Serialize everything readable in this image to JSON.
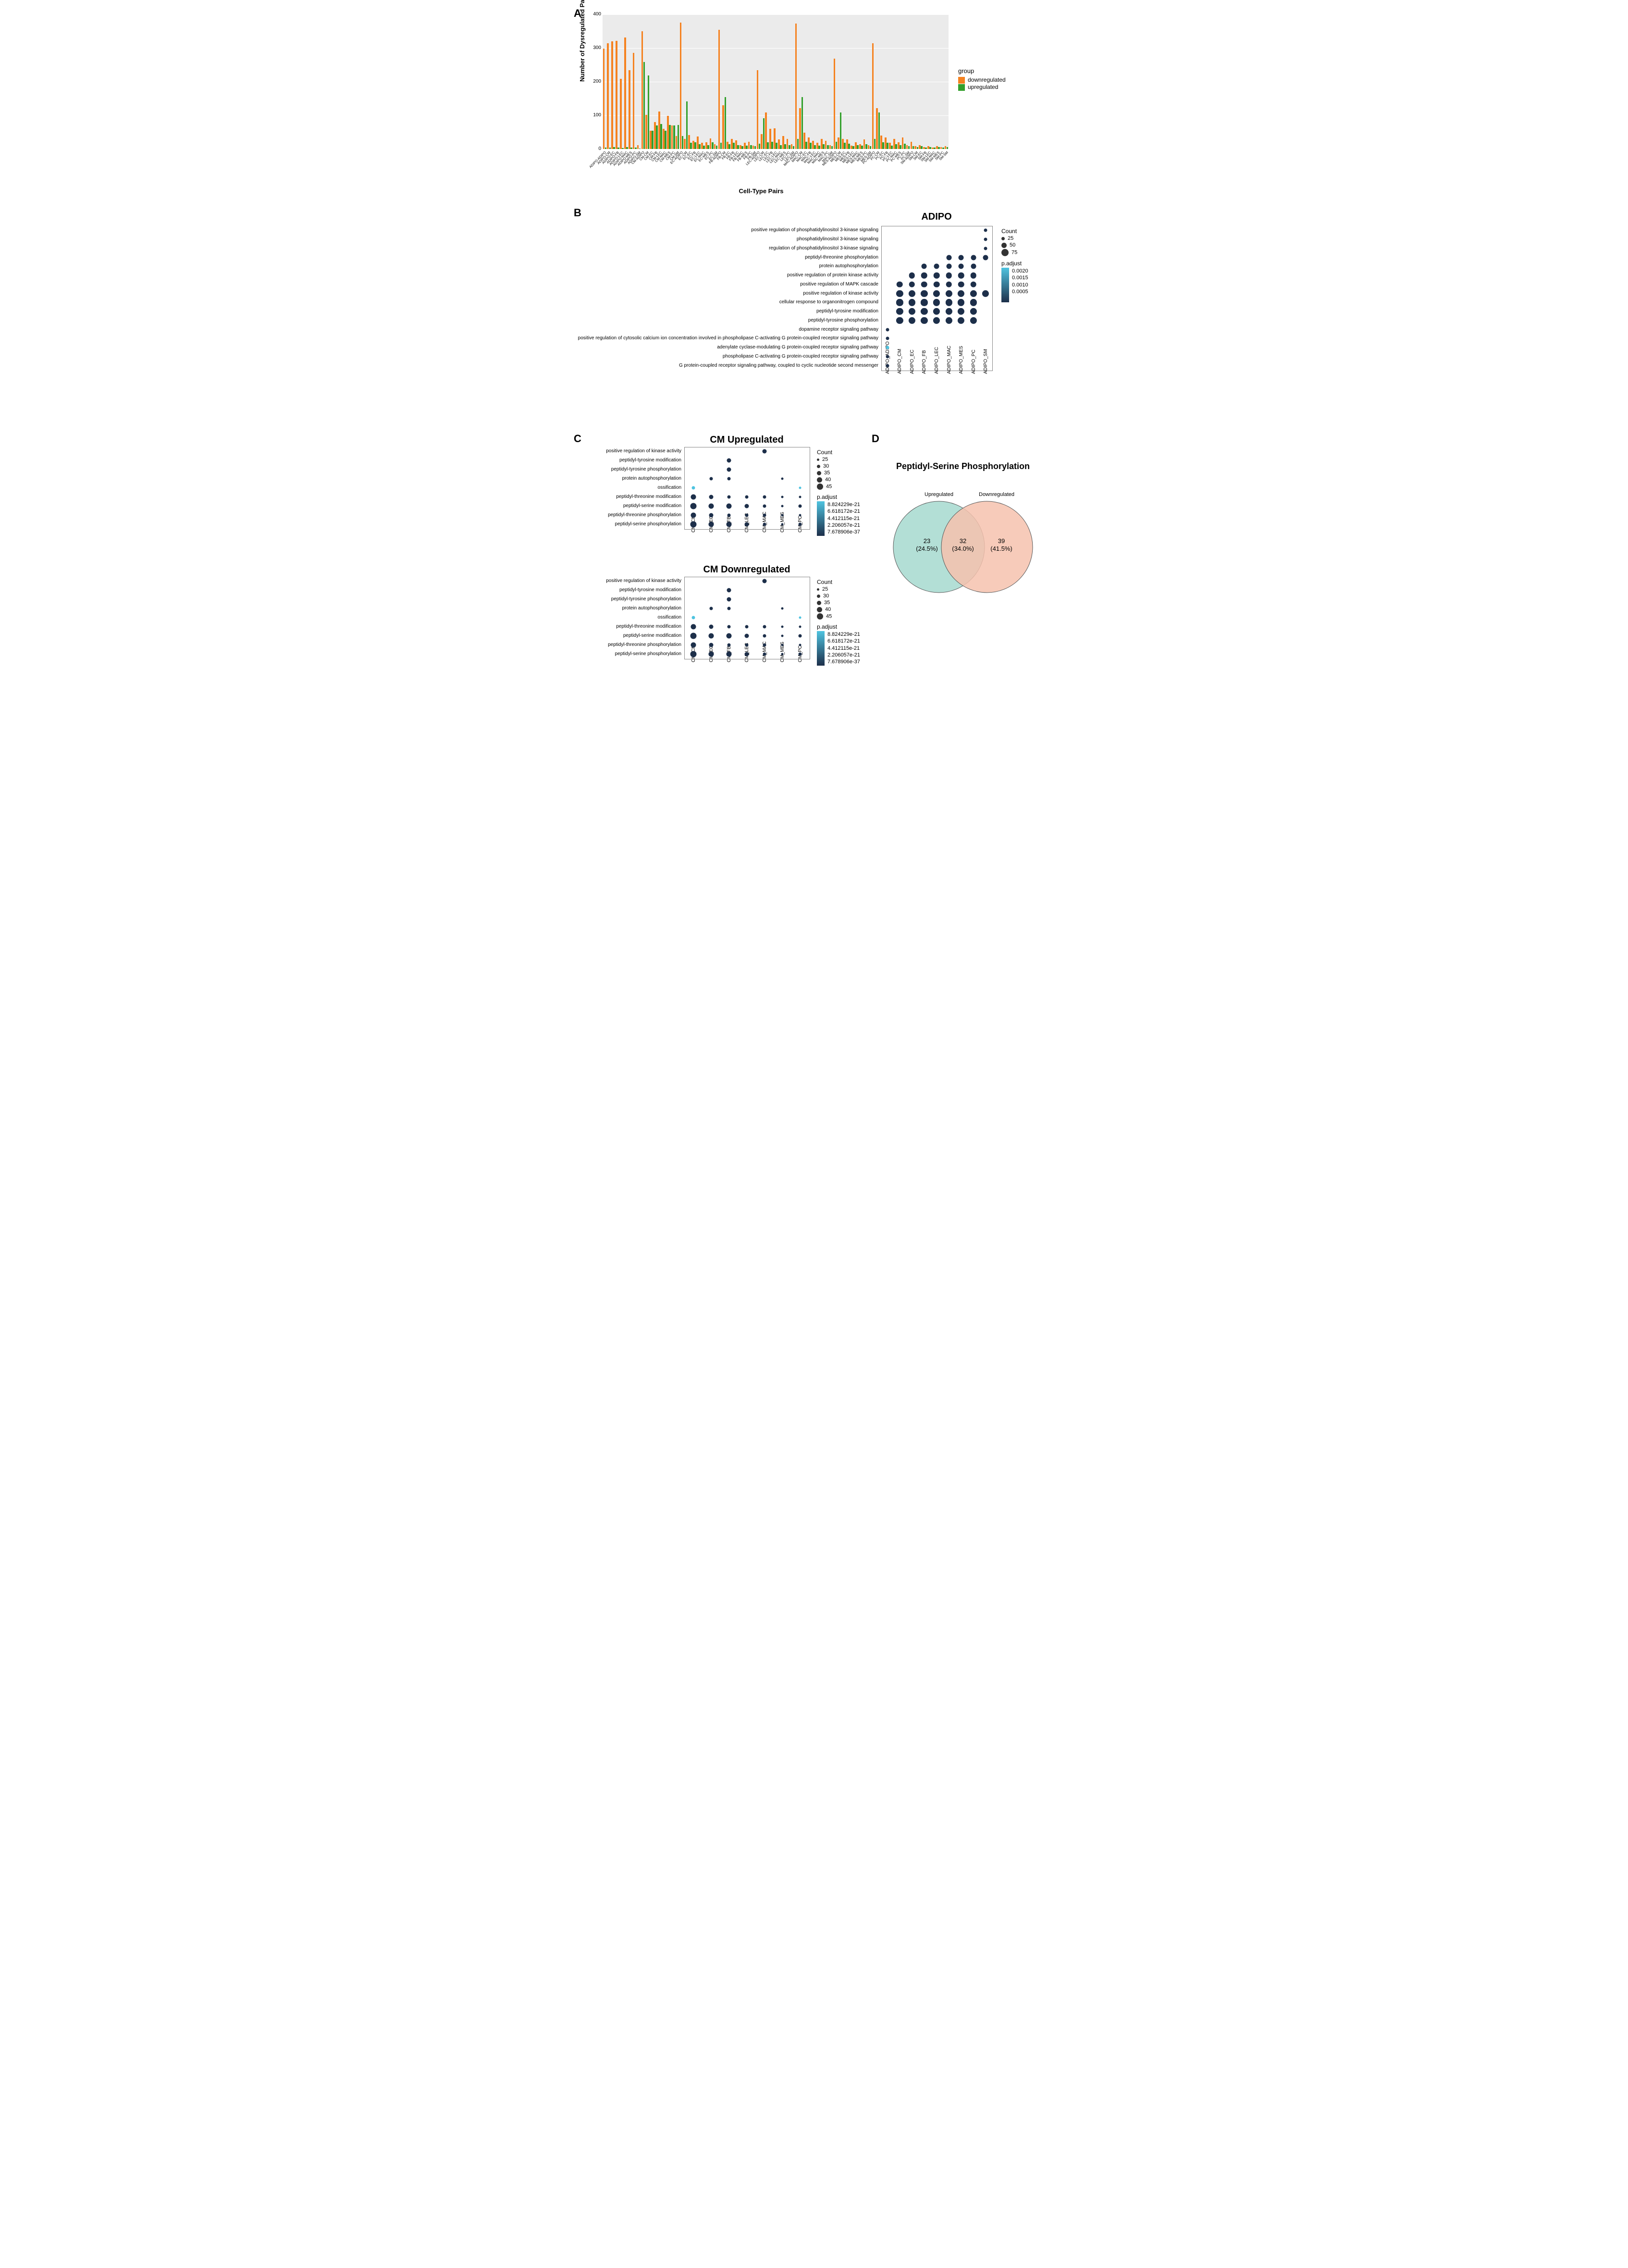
{
  "panelA": {
    "type": "grouped-bar",
    "ylabel": "Number of Dysregulated Pairs",
    "xlabel": "Cell-Type Pairs",
    "ylim": [
      0,
      400
    ],
    "ytick_step": 100,
    "background_color": "#ebebeb",
    "grid_color": "#ffffff",
    "colors": {
      "downregulated": "#f58220",
      "upregulated": "#33a02c"
    },
    "legend_title": "group",
    "legend_labels": [
      "downregulated",
      "upregulated"
    ],
    "categories": [
      "ADIPO-ADIPO",
      "ADIPO-CM",
      "ADIPO-EC",
      "ADIPO-FB",
      "ADIPO-LEC",
      "ADIPO-MAC",
      "ADIPO-MES",
      "ADIPO-PC",
      "ADIPO-SM",
      "CM-ADIPO",
      "CM-CM",
      "CM-EC",
      "CM-FB",
      "CM-LEC",
      "CM-MAC",
      "CM-MES",
      "CM-PC",
      "CM-SM",
      "EC-ADIPO",
      "EC-CM",
      "EC-EC",
      "EC-FB",
      "EC-LEC",
      "EC-MAC",
      "EC-MES",
      "EC-PC",
      "EC-SM",
      "FB-ADIPO",
      "FB-CM",
      "FB-EC",
      "FB-FB",
      "FB-LEC",
      "FB-MAC",
      "FB-MES",
      "FB-PC",
      "FB-SM",
      "LEC-ADIPO",
      "LEC-CM",
      "LEC-EC",
      "LEC-FB",
      "LEC-LEC",
      "LEC-MAC",
      "LEC-MES",
      "LEC-PC",
      "LEC-SM",
      "MAC-ADIPO",
      "MAC-CM",
      "MAC-EC",
      "MAC-FB",
      "MAC-LEC",
      "MAC-MAC",
      "MAC-MES",
      "MAC-PC",
      "MAC-SM",
      "MES-ADIPO",
      "MES-CM",
      "MES-EC",
      "MES-FB",
      "MES-LEC",
      "MES-MAC",
      "MES-MES",
      "MES-PC",
      "MES-SM",
      "PC-ADIPO",
      "PC-CM",
      "PC-EC",
      "PC-FB",
      "PC-LEC",
      "PC-MAC",
      "PC-MES",
      "PC-PC",
      "PC-SM",
      "SM-ADIPO",
      "SM-CM",
      "SM-EC",
      "SM-FB",
      "SM-LEC",
      "SM-MAC",
      "SM-MES",
      "SM-PC",
      "SM-SM"
    ],
    "downregulated": [
      298,
      315,
      320,
      322,
      208,
      332,
      235,
      286,
      12,
      350,
      102,
      55,
      80,
      111,
      60,
      98,
      70,
      38,
      376,
      30,
      42,
      25,
      37,
      18,
      20,
      32,
      15,
      355,
      130,
      22,
      30,
      26,
      12,
      18,
      22,
      10,
      235,
      45,
      108,
      60,
      62,
      28,
      38,
      30,
      14,
      373,
      122,
      48,
      35,
      24,
      18,
      30,
      24,
      12,
      268,
      35,
      30,
      28,
      10,
      20,
      14,
      28,
      12,
      314,
      122,
      40,
      35,
      18,
      30,
      20,
      34,
      12,
      22,
      8,
      12,
      6,
      8,
      5,
      8,
      6,
      8
    ],
    "upregulated": [
      5,
      4,
      6,
      5,
      3,
      6,
      4,
      5,
      2,
      258,
      218,
      55,
      70,
      75,
      55,
      72,
      70,
      72,
      38,
      142,
      18,
      20,
      14,
      10,
      12,
      20,
      10,
      18,
      155,
      14,
      18,
      12,
      8,
      10,
      12,
      8,
      16,
      92,
      20,
      22,
      18,
      12,
      14,
      12,
      8,
      30,
      155,
      22,
      18,
      12,
      10,
      14,
      12,
      8,
      22,
      108,
      18,
      16,
      8,
      12,
      10,
      14,
      8,
      30,
      108,
      20,
      18,
      10,
      14,
      12,
      16,
      8,
      8,
      6,
      8,
      5,
      6,
      4,
      6,
      5,
      6
    ]
  },
  "panelB": {
    "type": "dotplot",
    "title": "ADIPO",
    "columns": [
      "ADIPO_ADIPO",
      "ADIPO_CM",
      "ADIPO_EC",
      "ADIPO_FB",
      "ADIPO_LEC",
      "ADIPO_MAC",
      "ADIPO_MES",
      "ADIPO_PC",
      "ADIPO_SM"
    ],
    "rows": [
      "positive regulation of phosphatidylinositol 3-kinase signaling",
      "phosphatidylinositol 3-kinase signaling",
      "regulation of phosphatidylinositol 3-kinase signaling",
      "peptidyl-threonine phosphorylation",
      "protein autophosphorylation",
      "positive regulation of protein kinase activity",
      "positive regulation of MAPK cascade",
      "positive regulation of kinase activity",
      "cellular response to organonitrogen compound",
      "peptidyl-tyrosine modification",
      "peptidyl-tyrosine phosphorylation",
      "dopamine receptor signaling pathway",
      "positive regulation of cytosolic calcium ion concentration involved in phospholipase C-activating G protein-coupled receptor signaling pathway",
      "adenylate cyclase-modulating G protein-coupled receptor signaling pathway",
      "phospholipase C-activating G protein-coupled receptor signaling pathway",
      "G protein-coupled receptor signaling pathway, coupled to cyclic nucleotide second messenger"
    ],
    "count_legend": {
      "title": "Count",
      "sizes": [
        25,
        50,
        75
      ],
      "px": [
        7,
        11,
        15
      ]
    },
    "padj_legend": {
      "title": "p.adjust",
      "labels": [
        "0.0020",
        "0.0015",
        "0.0010",
        "0.0005"
      ],
      "gradient": [
        "#4ec3e0",
        "#1d2f4a"
      ]
    },
    "dark": "#1d2f4a",
    "light": "#4ec3e0",
    "points": [
      {
        "r": 0,
        "c": 8,
        "size": 25
      },
      {
        "r": 1,
        "c": 8,
        "size": 25
      },
      {
        "r": 2,
        "c": 8,
        "size": 25
      },
      {
        "r": 3,
        "c": 5,
        "size": 50
      },
      {
        "r": 3,
        "c": 6,
        "size": 50
      },
      {
        "r": 3,
        "c": 7,
        "size": 50
      },
      {
        "r": 3,
        "c": 8,
        "size": 50
      },
      {
        "r": 4,
        "c": 3,
        "size": 50
      },
      {
        "r": 4,
        "c": 4,
        "size": 50
      },
      {
        "r": 4,
        "c": 5,
        "size": 50
      },
      {
        "r": 4,
        "c": 6,
        "size": 50
      },
      {
        "r": 4,
        "c": 7,
        "size": 50
      },
      {
        "r": 5,
        "c": 2,
        "size": 60
      },
      {
        "r": 5,
        "c": 3,
        "size": 60
      },
      {
        "r": 5,
        "c": 4,
        "size": 60
      },
      {
        "r": 5,
        "c": 5,
        "size": 60
      },
      {
        "r": 5,
        "c": 6,
        "size": 60
      },
      {
        "r": 5,
        "c": 7,
        "size": 60
      },
      {
        "r": 6,
        "c": 1,
        "size": 60
      },
      {
        "r": 6,
        "c": 2,
        "size": 60
      },
      {
        "r": 6,
        "c": 3,
        "size": 60
      },
      {
        "r": 6,
        "c": 4,
        "size": 60
      },
      {
        "r": 6,
        "c": 5,
        "size": 60
      },
      {
        "r": 6,
        "c": 6,
        "size": 60
      },
      {
        "r": 6,
        "c": 7,
        "size": 60
      },
      {
        "r": 7,
        "c": 1,
        "size": 70
      },
      {
        "r": 7,
        "c": 2,
        "size": 70
      },
      {
        "r": 7,
        "c": 3,
        "size": 70
      },
      {
        "r": 7,
        "c": 4,
        "size": 70
      },
      {
        "r": 7,
        "c": 5,
        "size": 70
      },
      {
        "r": 7,
        "c": 6,
        "size": 70
      },
      {
        "r": 7,
        "c": 7,
        "size": 70
      },
      {
        "r": 7,
        "c": 8,
        "size": 70
      },
      {
        "r": 8,
        "c": 1,
        "size": 70
      },
      {
        "r": 8,
        "c": 2,
        "size": 70
      },
      {
        "r": 8,
        "c": 3,
        "size": 70
      },
      {
        "r": 8,
        "c": 4,
        "size": 70
      },
      {
        "r": 8,
        "c": 5,
        "size": 70
      },
      {
        "r": 8,
        "c": 6,
        "size": 70
      },
      {
        "r": 8,
        "c": 7,
        "size": 70
      },
      {
        "r": 9,
        "c": 1,
        "size": 70
      },
      {
        "r": 9,
        "c": 2,
        "size": 70
      },
      {
        "r": 9,
        "c": 3,
        "size": 70
      },
      {
        "r": 9,
        "c": 4,
        "size": 70
      },
      {
        "r": 9,
        "c": 5,
        "size": 70
      },
      {
        "r": 9,
        "c": 6,
        "size": 70
      },
      {
        "r": 9,
        "c": 7,
        "size": 70
      },
      {
        "r": 10,
        "c": 1,
        "size": 70
      },
      {
        "r": 10,
        "c": 2,
        "size": 70
      },
      {
        "r": 10,
        "c": 3,
        "size": 70
      },
      {
        "r": 10,
        "c": 4,
        "size": 70
      },
      {
        "r": 10,
        "c": 5,
        "size": 70
      },
      {
        "r": 10,
        "c": 6,
        "size": 70
      },
      {
        "r": 10,
        "c": 7,
        "size": 70
      },
      {
        "r": 11,
        "c": 0,
        "size": 25
      },
      {
        "r": 12,
        "c": 0,
        "size": 25
      },
      {
        "r": 13,
        "c": 0,
        "size": 25,
        "light": true
      },
      {
        "r": 14,
        "c": 0,
        "size": 25
      },
      {
        "r": 15,
        "c": 0,
        "size": 25
      }
    ]
  },
  "panelC": {
    "columns": [
      "CM_CM",
      "CM_EC",
      "CM_FB",
      "CM_LEC",
      "CM_MAC",
      "CM_MES",
      "CM_PC"
    ],
    "rows": [
      "positive regulation of kinase activity",
      "peptidyl-tyrosine modification",
      "peptidyl-tyrosine phosphorylation",
      "protein autophosphorylation",
      "ossification",
      "peptidyl-threonine modification",
      "peptidyl-serine modification",
      "peptidyl-threonine phosphorylation",
      "peptidyl-serine phosphorylation"
    ],
    "count_legend": {
      "title": "Count",
      "sizes": [
        25,
        30,
        35,
        40,
        45
      ],
      "px": [
        5,
        7,
        9,
        11,
        13
      ]
    },
    "padj_legend": {
      "title": "p.adjust",
      "labels": [
        "8.824229e-21",
        "6.618172e-21",
        "4.412115e-21",
        "2.206057e-21",
        "7.678906e-37"
      ],
      "gradient": [
        "#4ec3e0",
        "#1d2f4a"
      ]
    },
    "dark": "#1d2f4a",
    "light": "#4ec3e0",
    "plots": [
      {
        "title": "CM Upregulated",
        "points": [
          {
            "r": 0,
            "c": 4,
            "size": 35
          },
          {
            "r": 1,
            "c": 2,
            "size": 35
          },
          {
            "r": 2,
            "c": 2,
            "size": 35
          },
          {
            "r": 3,
            "c": 1,
            "size": 30
          },
          {
            "r": 3,
            "c": 2,
            "size": 30
          },
          {
            "r": 3,
            "c": 5,
            "size": 25
          },
          {
            "r": 4,
            "c": 0,
            "size": 30,
            "light": true
          },
          {
            "r": 4,
            "c": 6,
            "size": 25,
            "light": true
          },
          {
            "r": 5,
            "c": 0,
            "size": 40
          },
          {
            "r": 5,
            "c": 1,
            "size": 35
          },
          {
            "r": 5,
            "c": 2,
            "size": 30
          },
          {
            "r": 5,
            "c": 3,
            "size": 30
          },
          {
            "r": 5,
            "c": 4,
            "size": 30
          },
          {
            "r": 5,
            "c": 5,
            "size": 25
          },
          {
            "r": 5,
            "c": 6,
            "size": 25
          },
          {
            "r": 6,
            "c": 0,
            "size": 45
          },
          {
            "r": 6,
            "c": 1,
            "size": 40
          },
          {
            "r": 6,
            "c": 2,
            "size": 40
          },
          {
            "r": 6,
            "c": 3,
            "size": 35
          },
          {
            "r": 6,
            "c": 4,
            "size": 30
          },
          {
            "r": 6,
            "c": 5,
            "size": 25
          },
          {
            "r": 6,
            "c": 6,
            "size": 30
          },
          {
            "r": 7,
            "c": 0,
            "size": 40
          },
          {
            "r": 7,
            "c": 1,
            "size": 35
          },
          {
            "r": 7,
            "c": 2,
            "size": 30
          },
          {
            "r": 7,
            "c": 3,
            "size": 30
          },
          {
            "r": 7,
            "c": 4,
            "size": 30
          },
          {
            "r": 7,
            "c": 5,
            "size": 25
          },
          {
            "r": 7,
            "c": 6,
            "size": 25
          },
          {
            "r": 8,
            "c": 0,
            "size": 45
          },
          {
            "r": 8,
            "c": 1,
            "size": 40
          },
          {
            "r": 8,
            "c": 2,
            "size": 40
          },
          {
            "r": 8,
            "c": 3,
            "size": 35
          },
          {
            "r": 8,
            "c": 4,
            "size": 30
          },
          {
            "r": 8,
            "c": 5,
            "size": 25
          },
          {
            "r": 8,
            "c": 6,
            "size": 30
          }
        ]
      },
      {
        "title": "CM Downregulated",
        "points": [
          {
            "r": 0,
            "c": 4,
            "size": 35
          },
          {
            "r": 1,
            "c": 2,
            "size": 35
          },
          {
            "r": 2,
            "c": 2,
            "size": 35
          },
          {
            "r": 3,
            "c": 1,
            "size": 30
          },
          {
            "r": 3,
            "c": 2,
            "size": 30
          },
          {
            "r": 3,
            "c": 5,
            "size": 25
          },
          {
            "r": 4,
            "c": 0,
            "size": 30,
            "light": true
          },
          {
            "r": 4,
            "c": 6,
            "size": 25,
            "light": true
          },
          {
            "r": 5,
            "c": 0,
            "size": 40
          },
          {
            "r": 5,
            "c": 1,
            "size": 35
          },
          {
            "r": 5,
            "c": 2,
            "size": 30
          },
          {
            "r": 5,
            "c": 3,
            "size": 30
          },
          {
            "r": 5,
            "c": 4,
            "size": 30
          },
          {
            "r": 5,
            "c": 5,
            "size": 25
          },
          {
            "r": 5,
            "c": 6,
            "size": 25
          },
          {
            "r": 6,
            "c": 0,
            "size": 45
          },
          {
            "r": 6,
            "c": 1,
            "size": 40
          },
          {
            "r": 6,
            "c": 2,
            "size": 40
          },
          {
            "r": 6,
            "c": 3,
            "size": 35
          },
          {
            "r": 6,
            "c": 4,
            "size": 30
          },
          {
            "r": 6,
            "c": 5,
            "size": 25
          },
          {
            "r": 6,
            "c": 6,
            "size": 30
          },
          {
            "r": 7,
            "c": 0,
            "size": 40
          },
          {
            "r": 7,
            "c": 1,
            "size": 35
          },
          {
            "r": 7,
            "c": 2,
            "size": 30
          },
          {
            "r": 7,
            "c": 3,
            "size": 30
          },
          {
            "r": 7,
            "c": 4,
            "size": 30
          },
          {
            "r": 7,
            "c": 5,
            "size": 25
          },
          {
            "r": 7,
            "c": 6,
            "size": 25
          },
          {
            "r": 8,
            "c": 0,
            "size": 45
          },
          {
            "r": 8,
            "c": 1,
            "size": 40
          },
          {
            "r": 8,
            "c": 2,
            "size": 40
          },
          {
            "r": 8,
            "c": 3,
            "size": 35
          },
          {
            "r": 8,
            "c": 4,
            "size": 30
          },
          {
            "r": 8,
            "c": 5,
            "size": 25
          },
          {
            "r": 8,
            "c": 6,
            "size": 30
          }
        ]
      }
    ]
  },
  "panelD": {
    "title": "Peptidyl-Serine Phosphorylation",
    "left_label": "Upregulated",
    "right_label": "Downregulated",
    "left_count": "23",
    "left_pct": "(24.5%)",
    "mid_count": "32",
    "mid_pct": "(34.0%)",
    "right_count": "39",
    "right_pct": "(41.5%)",
    "left_color": "#a6d9cf",
    "right_color": "#f6c2ae",
    "overlap_color": "#cdb097",
    "border_color": "#555555"
  }
}
